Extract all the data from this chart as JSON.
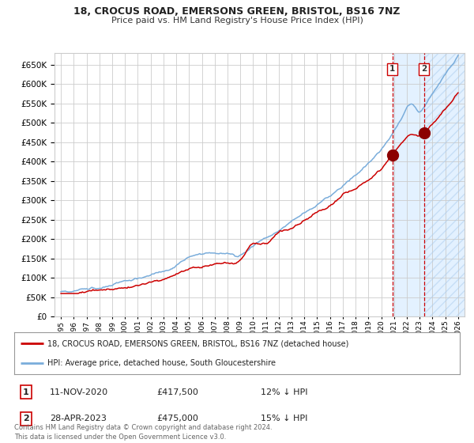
{
  "title": "18, CROCUS ROAD, EMERSONS GREEN, BRISTOL, BS16 7NZ",
  "subtitle": "Price paid vs. HM Land Registry's House Price Index (HPI)",
  "legend_line1": "18, CROCUS ROAD, EMERSONS GREEN, BRISTOL, BS16 7NZ (detached house)",
  "legend_line2": "HPI: Average price, detached house, South Gloucestershire",
  "annotation1_label": "1",
  "annotation1_date": "11-NOV-2020",
  "annotation1_price": "£417,500",
  "annotation1_hpi": "12% ↓ HPI",
  "annotation2_label": "2",
  "annotation2_date": "28-APR-2023",
  "annotation2_price": "£475,000",
  "annotation2_hpi": "15% ↓ HPI",
  "footer": "Contains HM Land Registry data © Crown copyright and database right 2024.\nThis data is licensed under the Open Government Licence v3.0.",
  "red_color": "#cc0000",
  "blue_color": "#7aaddb",
  "background_color": "#ffffff",
  "grid_color": "#cccccc",
  "shade_color": "#ddeeff",
  "ylim": [
    0,
    680000
  ],
  "yticks": [
    0,
    50000,
    100000,
    150000,
    200000,
    250000,
    300000,
    350000,
    400000,
    450000,
    500000,
    550000,
    600000,
    650000
  ],
  "year_start": 1995,
  "year_end": 2026,
  "sale1_year": 2020.87,
  "sale1_value": 417500,
  "sale2_year": 2023.33,
  "sale2_value": 475000
}
